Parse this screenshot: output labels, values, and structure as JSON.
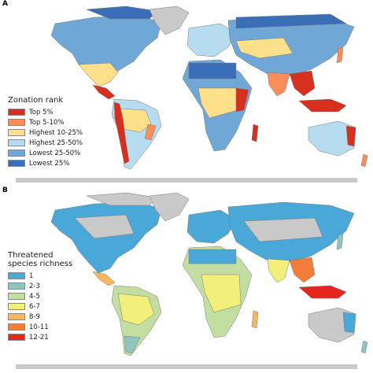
{
  "panel_a": {
    "label": "A",
    "legend_title": "Zonation rank",
    "legend_items": [
      {
        "label": "Top 5%",
        "color": "#d7301f"
      },
      {
        "label": "Top 5-10%",
        "color": "#fc8d59"
      },
      {
        "label": "Highest 10-25%",
        "color": "#fee08b"
      },
      {
        "label": "Highest 25-50%",
        "color": "#b7dcef"
      },
      {
        "label": "Lowest 25-50%",
        "color": "#6fa8d6"
      },
      {
        "label": "Lowest 25%",
        "color": "#3a6fb8"
      }
    ]
  },
  "panel_b": {
    "label": "B",
    "legend_title": "Threatened\nspecies richness",
    "legend_items": [
      {
        "label": "1",
        "color": "#4aa8d8"
      },
      {
        "label": "2-3",
        "color": "#8fc4c0"
      },
      {
        "label": "4-5",
        "color": "#c2dea0"
      },
      {
        "label": "6-7",
        "color": "#f2f07a"
      },
      {
        "label": "8-9",
        "color": "#fdb55c"
      },
      {
        "label": "10-11",
        "color": "#f47d3a"
      },
      {
        "label": "12-21",
        "color": "#e4261c"
      }
    ]
  },
  "map": {
    "no_data_color": "#c9c9c9",
    "border_color": "#7a7a7a"
  }
}
